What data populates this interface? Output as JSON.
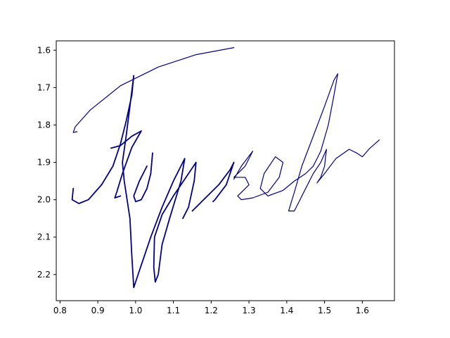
{
  "chart_data": {
    "type": "line",
    "title": "",
    "xlabel": "",
    "ylabel": "",
    "xlim": [
      0.79,
      1.685
    ],
    "ylim": [
      2.27,
      1.575
    ],
    "y_inverted": true,
    "grid": false,
    "legend": "none",
    "x_ticks": [
      "0.8",
      "0.9",
      "1.0",
      "1.1",
      "1.2",
      "1.3",
      "1.4",
      "1.5",
      "1.6"
    ],
    "y_ticks": [
      "1.6",
      "1.7",
      "1.8",
      "1.9",
      "2.0",
      "2.1",
      "2.2"
    ],
    "line_color": "#00008b",
    "series": [
      {
        "points": [
          [
            1.26,
            1.593
          ],
          [
            1.16,
            1.612
          ],
          [
            1.06,
            1.645
          ],
          [
            0.96,
            1.695
          ],
          [
            0.88,
            1.76
          ],
          [
            0.84,
            1.805
          ],
          [
            0.835,
            1.82
          ],
          [
            0.845,
            1.818
          ]
        ]
      },
      {
        "points": [
          [
            0.835,
            1.97
          ],
          [
            0.832,
            2.0
          ],
          [
            0.85,
            2.01
          ],
          [
            0.875,
            2.0
          ],
          [
            0.91,
            1.96
          ],
          [
            0.94,
            1.91
          ],
          [
            0.96,
            1.85
          ],
          [
            0.975,
            1.79
          ],
          [
            0.99,
            1.72
          ],
          [
            0.995,
            1.668
          ],
          [
            0.985,
            1.75
          ],
          [
            0.975,
            1.83
          ],
          [
            0.965,
            1.9
          ],
          [
            0.97,
            1.95
          ],
          [
            0.985,
            2.05
          ],
          [
            0.99,
            2.15
          ],
          [
            0.995,
            2.235
          ],
          [
            1.01,
            2.19
          ],
          [
            1.04,
            2.1
          ],
          [
            1.07,
            2.02
          ],
          [
            1.1,
            1.95
          ],
          [
            1.13,
            1.89
          ],
          [
            1.12,
            1.95
          ],
          [
            1.09,
            2.05
          ],
          [
            1.07,
            2.12
          ],
          [
            1.06,
            2.2
          ],
          [
            1.052,
            2.22
          ],
          [
            1.048,
            2.18
          ],
          [
            1.05,
            2.1
          ],
          [
            1.07,
            2.04
          ],
          [
            1.1,
            1.99
          ],
          [
            1.14,
            1.93
          ],
          [
            1.16,
            1.9
          ],
          [
            1.155,
            1.95
          ],
          [
            1.14,
            2.02
          ],
          [
            1.125,
            2.05
          ]
        ]
      },
      {
        "points": [
          [
            0.935,
            1.862
          ],
          [
            0.96,
            1.855
          ],
          [
            0.99,
            1.83
          ],
          [
            1.015,
            1.816
          ],
          [
            0.99,
            1.86
          ],
          [
            0.965,
            1.93
          ],
          [
            0.95,
            1.98
          ],
          [
            0.945,
            1.995
          ],
          [
            0.96,
            1.99
          ]
        ]
      },
      {
        "points": [
          [
            1.045,
            1.875
          ],
          [
            1.04,
            1.93
          ],
          [
            1.03,
            1.97
          ],
          [
            1.015,
            2.0
          ],
          [
            1.0,
            2.005
          ],
          [
            0.995,
            1.99
          ],
          [
            1.01,
            1.95
          ],
          [
            1.03,
            1.91
          ]
        ]
      },
      {
        "points": [
          [
            1.15,
            2.03
          ],
          [
            1.18,
            2.0
          ],
          [
            1.22,
            1.96
          ],
          [
            1.25,
            1.92
          ],
          [
            1.26,
            1.9
          ],
          [
            1.24,
            1.96
          ],
          [
            1.21,
            2.0
          ],
          [
            1.205,
            2.005
          ]
        ]
      },
      {
        "points": [
          [
            1.26,
            1.945
          ],
          [
            1.28,
            1.91
          ],
          [
            1.31,
            1.87
          ],
          [
            1.29,
            1.91
          ],
          [
            1.26,
            1.94
          ],
          [
            1.29,
            1.94
          ],
          [
            1.3,
            1.96
          ],
          [
            1.27,
            1.99
          ],
          [
            1.28,
            2.0
          ],
          [
            1.31,
            1.995
          ],
          [
            1.35,
            1.98
          ],
          [
            1.38,
            1.94
          ],
          [
            1.39,
            1.9
          ],
          [
            1.37,
            1.885
          ],
          [
            1.34,
            1.93
          ],
          [
            1.33,
            1.97
          ],
          [
            1.35,
            1.99
          ],
          [
            1.39,
            1.975
          ],
          [
            1.42,
            1.95
          ],
          [
            1.45,
            1.93
          ],
          [
            1.47,
            1.91
          ],
          [
            1.49,
            1.87
          ],
          [
            1.51,
            1.8
          ],
          [
            1.525,
            1.72
          ],
          [
            1.535,
            1.663
          ],
          [
            1.525,
            1.68
          ],
          [
            1.5,
            1.75
          ],
          [
            1.47,
            1.83
          ],
          [
            1.44,
            1.91
          ],
          [
            1.42,
            1.98
          ],
          [
            1.405,
            2.03
          ],
          [
            1.42,
            2.03
          ],
          [
            1.43,
            2.01
          ],
          [
            1.45,
            1.97
          ],
          [
            1.47,
            1.93
          ],
          [
            1.49,
            1.9
          ],
          [
            1.505,
            1.865
          ],
          [
            1.5,
            1.91
          ],
          [
            1.49,
            1.94
          ],
          [
            1.48,
            1.955
          ],
          [
            1.5,
            1.93
          ],
          [
            1.53,
            1.89
          ],
          [
            1.565,
            1.865
          ],
          [
            1.585,
            1.875
          ],
          [
            1.6,
            1.885
          ],
          [
            1.62,
            1.862
          ],
          [
            1.645,
            1.84
          ]
        ]
      }
    ]
  }
}
